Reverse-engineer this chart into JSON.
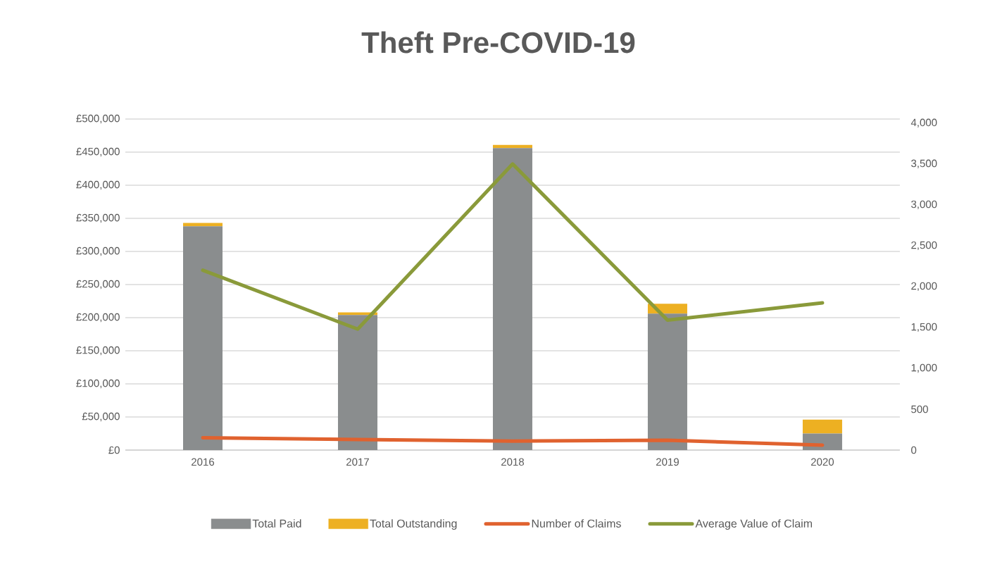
{
  "chart_data": {
    "type": "bar",
    "title": "Theft Pre-COVID-19",
    "categories": [
      "2016",
      "2017",
      "2018",
      "2019",
      "2020"
    ],
    "stacked": true,
    "grid": "y",
    "legend": "bottom",
    "series": [
      {
        "name": "Total Paid",
        "color": "#8a8d8e",
        "values": [
          338000,
          204000,
          456000,
          206000,
          25000
        ]
      },
      {
        "name": "Total Outstanding",
        "color": "#edb022",
        "values": [
          5000,
          4000,
          5000,
          15000,
          21000
        ]
      },
      {
        "name": "Number of Claims",
        "type": "line",
        "axis": "y2",
        "color": "#e0622f",
        "values": [
          150,
          130,
          110,
          120,
          60
        ]
      },
      {
        "name": "Average Value of Claim",
        "type": "line",
        "axis": "y2",
        "color": "#8a9a3a",
        "values": [
          2200,
          1480,
          3500,
          1590,
          1800
        ]
      }
    ],
    "ylim": [
      0,
      500000
    ],
    "yticks": [
      {
        "value": 0,
        "label": "£0"
      },
      {
        "value": 50000,
        "label": "£50,000"
      },
      {
        "value": 100000,
        "label": "£100,000"
      },
      {
        "value": 150000,
        "label": "£150,000"
      },
      {
        "value": 200000,
        "label": "£200,000"
      },
      {
        "value": 250000,
        "label": "£250,000"
      },
      {
        "value": 300000,
        "label": "£300,000"
      },
      {
        "value": 350000,
        "label": "£350,000"
      },
      {
        "value": 400000,
        "label": "£400,000"
      },
      {
        "value": 450000,
        "label": "£450,000"
      },
      {
        "value": 500000,
        "label": "£500,000"
      }
    ],
    "y2lim": [
      0,
      4050
    ],
    "y2ticks": [
      0,
      {
        "value": 500,
        "label": "500"
      },
      {
        "value": 1000,
        "label": "1,000"
      },
      {
        "value": 1500,
        "label": "1,500"
      },
      {
        "value": 2000,
        "label": "2,000"
      },
      {
        "value": 2500,
        "label": "2,500"
      },
      {
        "value": 3000,
        "label": "3,000"
      },
      {
        "value": 3500,
        "label": "3,500"
      },
      {
        "value": 4000,
        "label": "4,000"
      }
    ]
  }
}
